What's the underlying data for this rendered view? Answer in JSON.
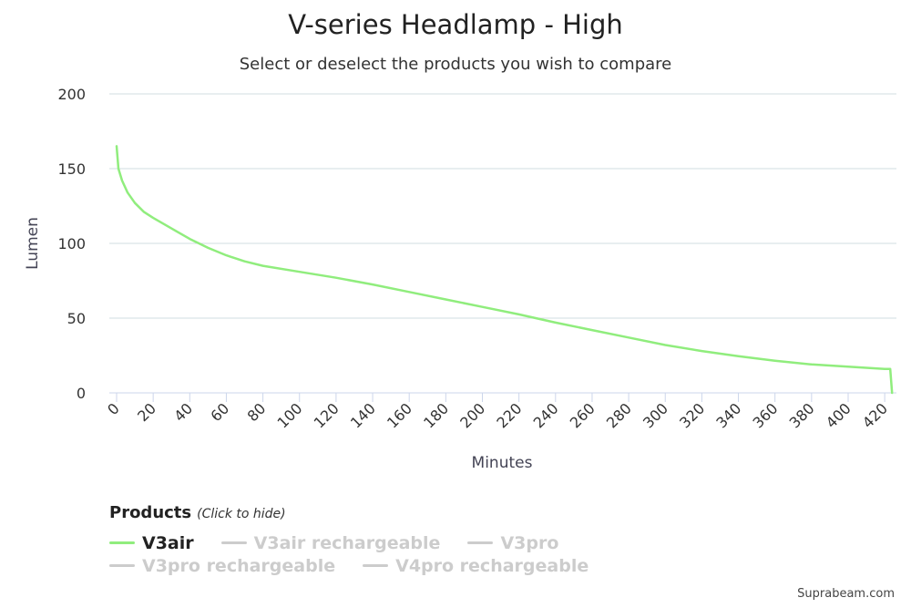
{
  "colors": {
    "series": "#90ed7d",
    "grid": "#d0dde2",
    "hidden": "#cccccc"
  },
  "legend": {
    "header": "Products",
    "hint": "(Click to hide)",
    "items": [
      {
        "label": "V3air",
        "active": true
      },
      {
        "label": "V3air rechargeable",
        "active": false
      },
      {
        "label": "V3pro",
        "active": false
      },
      {
        "label": "V3pro rechargeable",
        "active": false
      },
      {
        "label": "V4pro rechargeable",
        "active": false
      }
    ]
  },
  "credit": "Suprabeam.com",
  "chart_data": {
    "type": "line",
    "title": "V-series Headlamp - High",
    "subtitle": "Select or deselect the products you wish to compare",
    "xlabel": "Minutes",
    "ylabel": "Lumen",
    "xlim": [
      0,
      426
    ],
    "ylim": [
      0,
      200
    ],
    "xticks": [
      "0",
      "20",
      "40",
      "60",
      "80",
      "100",
      "120",
      "140",
      "160",
      "180",
      "200",
      "220",
      "240",
      "260",
      "280",
      "300",
      "320",
      "340",
      "360",
      "380",
      "400",
      "420"
    ],
    "yticks": [
      "0",
      "50",
      "100",
      "150",
      "200"
    ],
    "grid": true,
    "series": [
      {
        "name": "V3air",
        "x": [
          0,
          1,
          3,
          6,
          10,
          15,
          20,
          30,
          40,
          50,
          60,
          70,
          80,
          100,
          120,
          140,
          160,
          180,
          200,
          220,
          240,
          260,
          280,
          300,
          320,
          340,
          360,
          380,
          400,
          420,
          423,
          424
        ],
        "y": [
          165,
          150,
          142,
          134,
          127,
          121,
          117,
          110,
          103,
          97,
          92,
          88,
          85,
          81,
          77,
          72.5,
          67.5,
          62.5,
          57.5,
          52.5,
          47,
          42,
          37,
          32,
          28,
          24.5,
          21.5,
          19,
          17.5,
          16,
          16,
          0
        ]
      }
    ]
  }
}
